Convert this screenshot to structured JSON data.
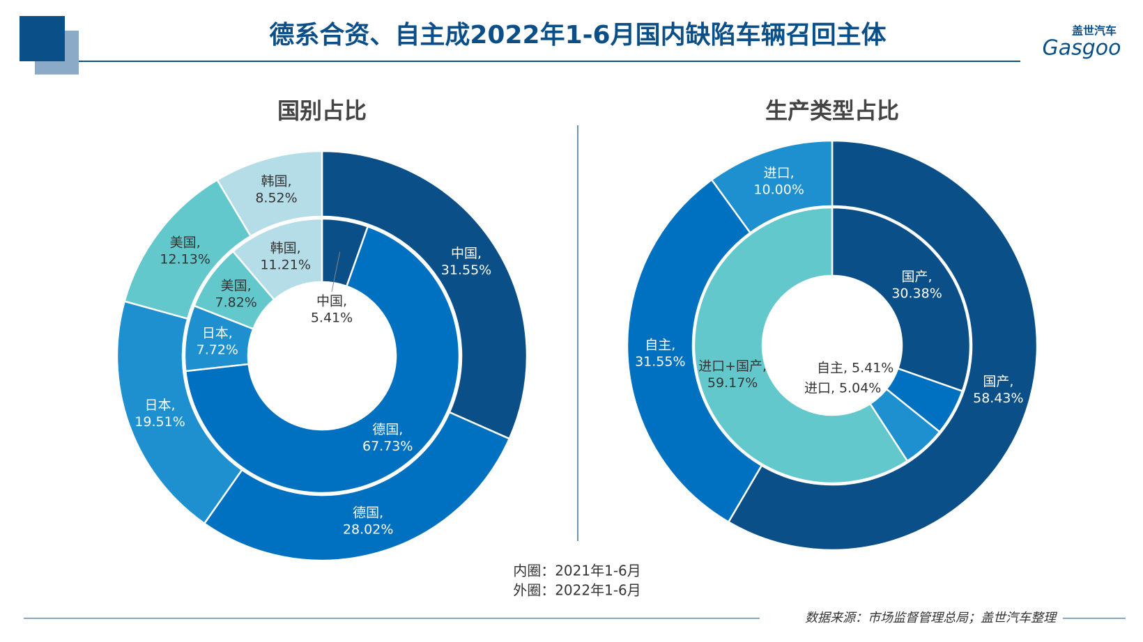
{
  "header": {
    "title": "德系合资、自主成2022年1-6月国内缺陷车辆召回主体",
    "logo_cn": "盖世汽车",
    "logo_en": "Gasgoo"
  },
  "chart_data": [
    {
      "type": "donut",
      "title": "国别占比",
      "inner": {
        "categories": [
          "中国,",
          "德国,",
          "日本,",
          "美国,",
          "韩国,"
        ],
        "values": [
          5.41,
          67.73,
          7.72,
          7.82,
          11.21
        ],
        "value_labels": [
          "5.41%",
          "67.73%",
          "7.72%",
          "7.82%",
          "11.21%"
        ],
        "colors": [
          "#0b4f88",
          "#0070c0",
          "#1e90d0",
          "#63c8cb",
          "#b4dde7"
        ]
      },
      "outer": {
        "categories": [
          "中国,",
          "德国,",
          "日本,",
          "美国,",
          "韩国,"
        ],
        "values": [
          31.55,
          28.02,
          19.51,
          12.13,
          8.52
        ],
        "value_labels": [
          "31.55%",
          "28.02%",
          "19.51%",
          "12.13%",
          "8.52%"
        ],
        "colors": [
          "#0b4f88",
          "#0070c0",
          "#1e90d0",
          "#63c8cb",
          "#b4dde7"
        ]
      }
    },
    {
      "type": "donut",
      "title": "生产类型占比",
      "inner": {
        "categories": [
          "国产,",
          "自主,",
          "进口,",
          "进口+国产,"
        ],
        "values": [
          30.38,
          5.41,
          5.04,
          59.17
        ],
        "value_labels": [
          "30.38%",
          "5.41%",
          "5.04%",
          "59.17%"
        ],
        "colors": [
          "#0b4f88",
          "#0070c0",
          "#1e90d0",
          "#63c8cb"
        ]
      },
      "outer": {
        "categories": [
          "国产,",
          "自主,",
          "进口,"
        ],
        "values": [
          58.43,
          31.55,
          10.0
        ],
        "value_labels": [
          "58.43%",
          "31.55%",
          "10.00%"
        ],
        "colors": [
          "#0b4f88",
          "#0070c0",
          "#1e90d0"
        ]
      }
    }
  ],
  "notes": [
    "内圈：2021年1-6月",
    "外圈：2022年1-6月"
  ],
  "source": "数据来源：市场监督管理总局；盖世汽车整理"
}
